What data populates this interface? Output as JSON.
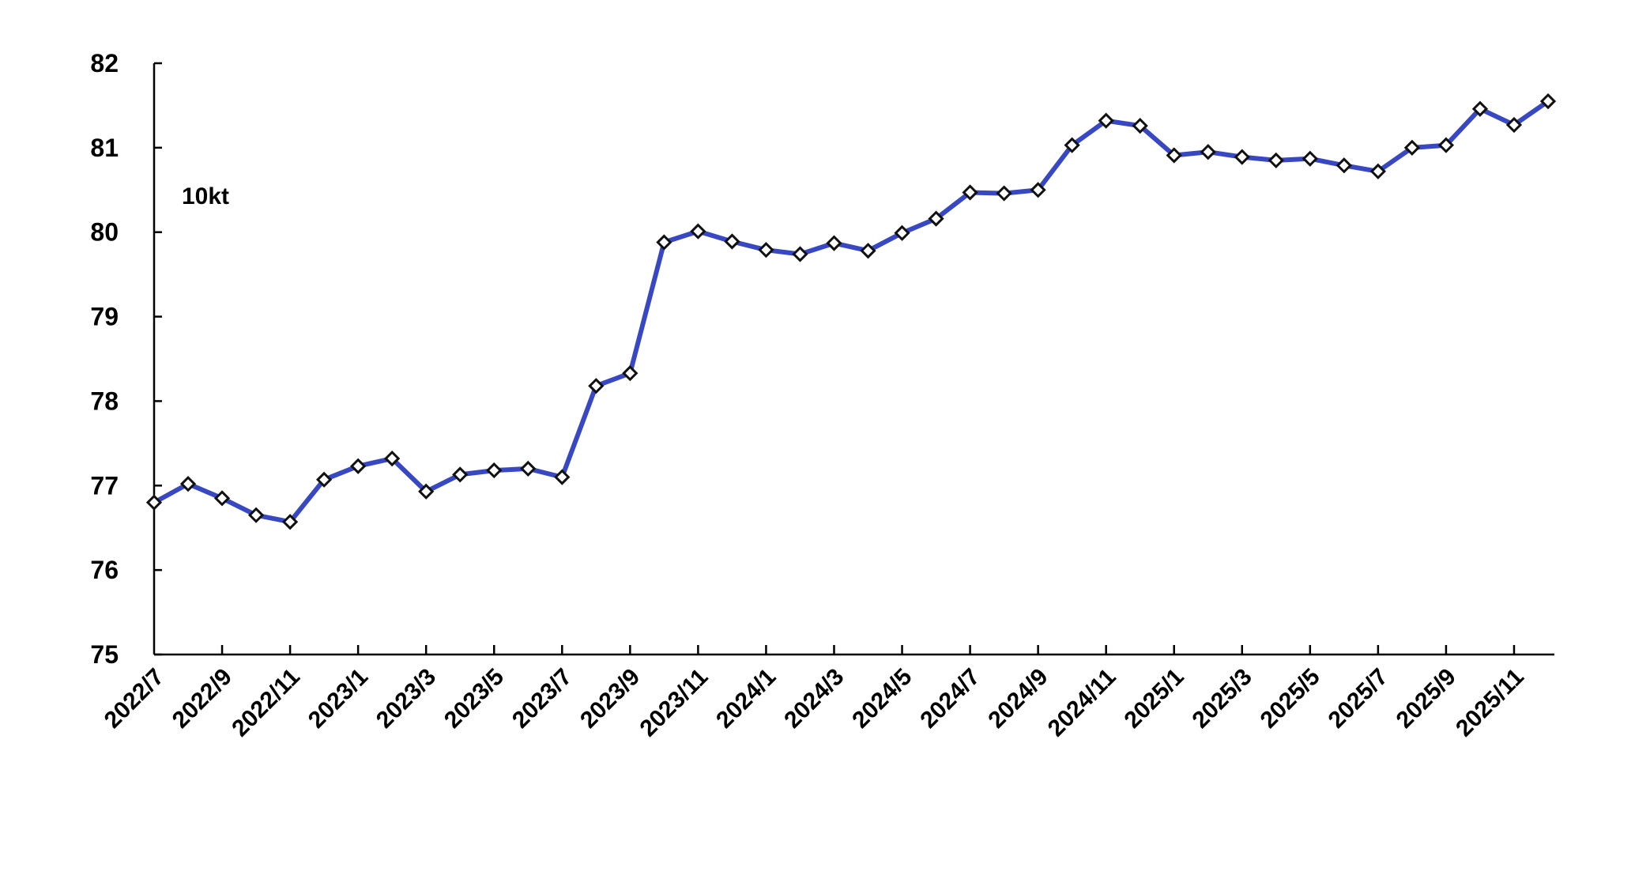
{
  "chart_data": {
    "type": "line",
    "title": "",
    "unit_label": "10kt",
    "xlabel": "",
    "ylabel": "",
    "ylim": [
      75,
      82
    ],
    "yticks": [
      75,
      76,
      77,
      78,
      79,
      80,
      81,
      82
    ],
    "grid": false,
    "legend": "none",
    "line_color": "#2233bb",
    "marker": "white diamond",
    "x": [
      "2022/7",
      "2022/8",
      "2022/9",
      "2022/10",
      "2022/11",
      "2022/12",
      "2023/1",
      "2023/2",
      "2023/3",
      "2023/4",
      "2023/5",
      "2023/6",
      "2023/7",
      "2023/8",
      "2023/9",
      "2023/10",
      "2023/11",
      "2023/12",
      "2024/1",
      "2024/2",
      "2024/3",
      "2024/4",
      "2024/5",
      "2024/6",
      "2024/7",
      "2024/8",
      "2024/9",
      "2024/10",
      "2024/11",
      "2024/12",
      "2025/1",
      "2025/2",
      "2025/3",
      "2025/4",
      "2025/5",
      "2025/6",
      "2025/7",
      "2025/8",
      "2025/9",
      "2025/10",
      "2025/11",
      "2025/12"
    ],
    "xtick_labels": [
      "2022/7",
      "2022/9",
      "2022/11",
      "2023/1",
      "2023/3",
      "2023/5",
      "2023/7",
      "2023/9",
      "2023/11",
      "2024/1",
      "2024/3",
      "2024/5",
      "2024/7",
      "2024/9",
      "2024/11",
      "2025/1",
      "2025/3",
      "2025/5",
      "2025/7",
      "2025/9",
      "2025/11"
    ],
    "series": [
      {
        "values": [
          76.8,
          77.02,
          76.85,
          76.65,
          76.57,
          77.07,
          77.23,
          77.32,
          76.93,
          77.13,
          77.18,
          77.2,
          77.1,
          78.18,
          78.33,
          79.88,
          80.01,
          79.89,
          79.79,
          79.74,
          79.87,
          79.78,
          79.99,
          80.16,
          80.47,
          80.46,
          80.5,
          81.03,
          81.32,
          81.26,
          80.91,
          80.95,
          80.89,
          80.85,
          80.87,
          80.79,
          80.72,
          81.0,
          81.03,
          81.46,
          81.27,
          81.55
        ]
      }
    ]
  }
}
